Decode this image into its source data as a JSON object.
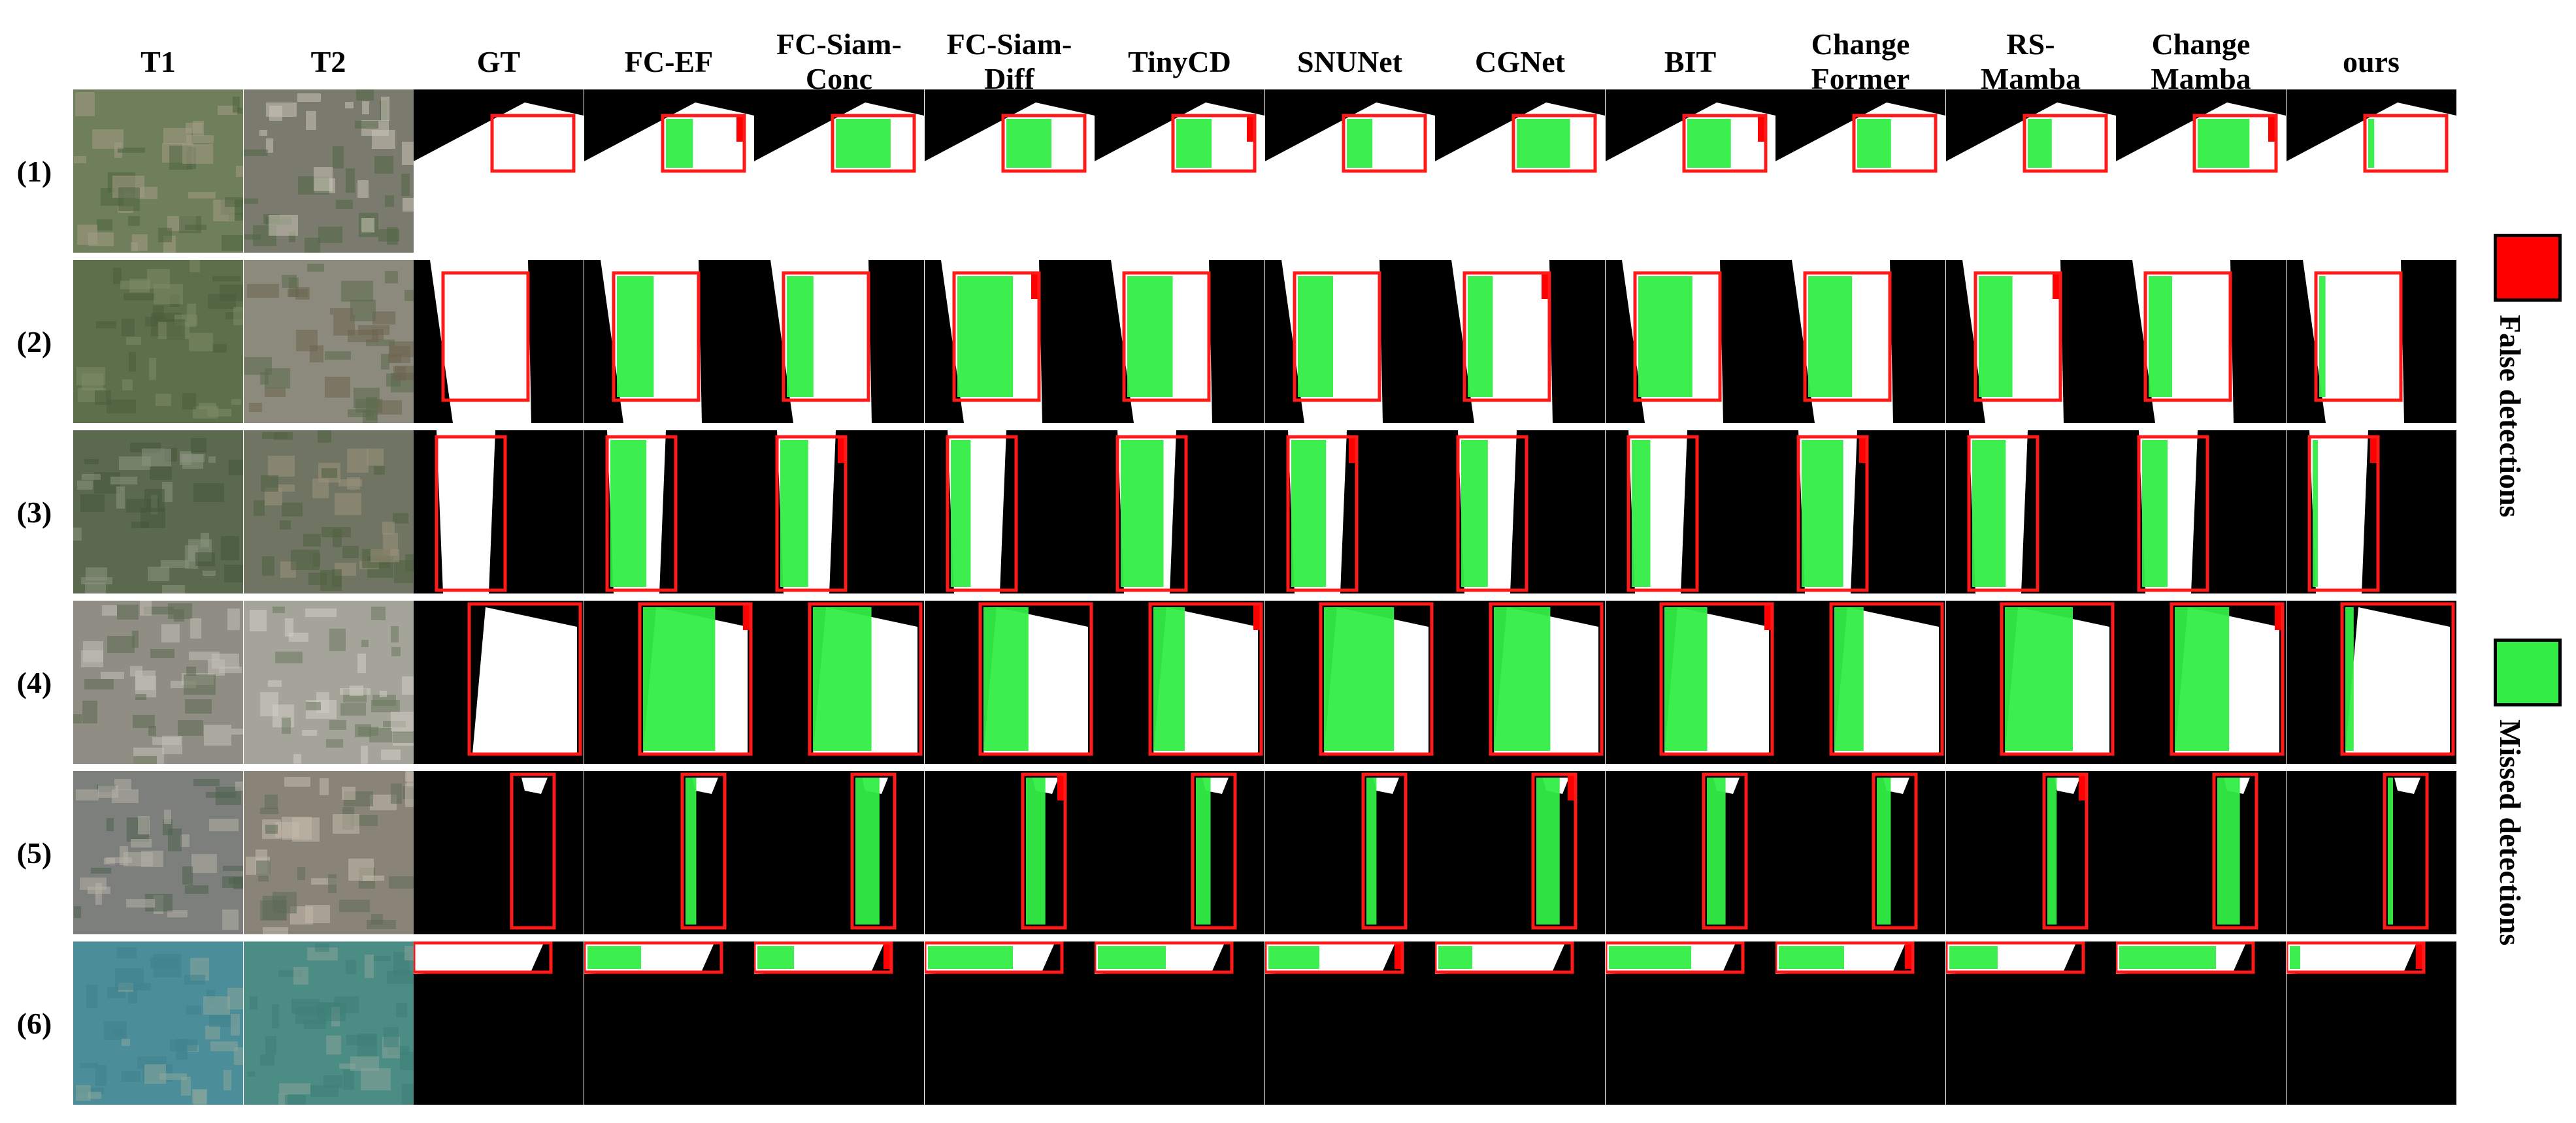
{
  "columns": [
    "T1",
    "T2",
    "GT",
    "FC-EF",
    "FC-Siam-\nConc",
    "FC-Siam-\nDiff",
    "TinyCD",
    "SNUNet",
    "CGNet",
    "BIT",
    "Change\nFormer",
    "RS-\nMamba",
    "Change\nMamba",
    "ours"
  ],
  "rows": [
    "(1)",
    "(2)",
    "(3)",
    "(4)",
    "(5)",
    "(6)"
  ],
  "legend": {
    "false_label": "False detections",
    "missed_label": "Missed detections",
    "false_color": "#ff0000",
    "missed_color": "#33ee44"
  },
  "colors": {
    "change": "#ffffff",
    "nochange": "#000000",
    "box": "#ff1a1a"
  }
}
